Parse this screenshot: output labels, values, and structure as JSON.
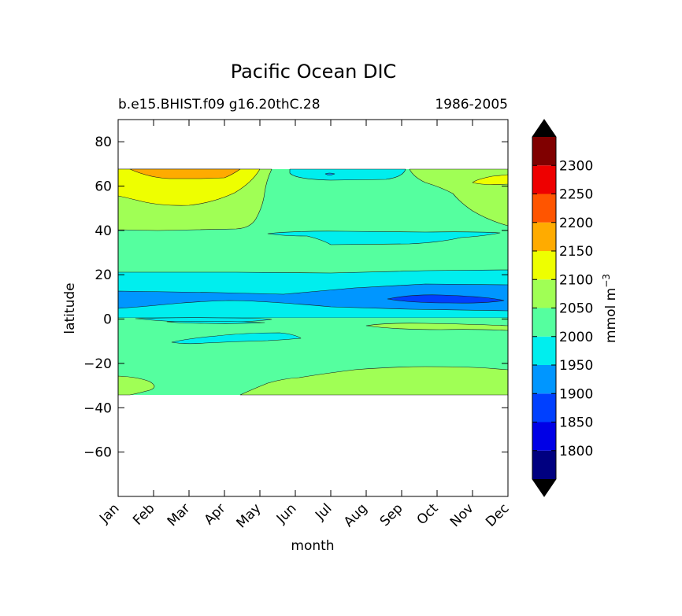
{
  "chart_data": {
    "type": "contourf",
    "title": "Pacific Ocean DIC",
    "subtitle_left": "b.e15.BHIST.f09 g16.20thC.28",
    "subtitle_right": "1986-2005",
    "xlabel": "month",
    "ylabel": "latitude",
    "x_categories": [
      "Jan",
      "Feb",
      "Mar",
      "Apr",
      "May",
      "Jun",
      "Jul",
      "Aug",
      "Sep",
      "Oct",
      "Nov",
      "Dec"
    ],
    "y_ticks": [
      80,
      60,
      40,
      20,
      0,
      -20,
      -40,
      -60
    ],
    "y_tick_labels": [
      "80",
      "60",
      "40",
      "20",
      "0",
      "−20",
      "−40",
      "−60"
    ],
    "ylim": [
      -80,
      90
    ],
    "data_lat_range": [
      -34,
      67
    ],
    "colorbar": {
      "label": "mmol m",
      "label_sup": "−3",
      "tick_labels": [
        "1800",
        "1850",
        "1900",
        "1950",
        "2000",
        "2050",
        "2100",
        "2150",
        "2200",
        "2250",
        "2300"
      ],
      "levels": [
        1750,
        1800,
        1850,
        1900,
        1950,
        2000,
        2050,
        2100,
        2150,
        2200,
        2250,
        2300,
        2350
      ],
      "colors": [
        "#000080",
        "#0000e6",
        "#0040ff",
        "#0096ff",
        "#00eeee",
        "#55ff9f",
        "#a0ff55",
        "#eeff00",
        "#ffab00",
        "#ff5500",
        "#ee0000",
        "#800000"
      ],
      "extend": "both",
      "under_color": "#000000",
      "over_color": "#000000"
    },
    "regions": [
      {
        "level": "2050-2100",
        "color": "#a0ff55",
        "desc": "background band north of 20N and south of -22S"
      },
      {
        "level": "2000-2050",
        "color": "#55ff9f",
        "desc": "main subtropical band"
      },
      {
        "level": "1950-2000",
        "color": "#00eeee",
        "desc": "tropical band near 10-20N and Southern patches"
      },
      {
        "level": "1900-1950",
        "color": "#0096ff",
        "desc": "equatorial band 2-12N"
      },
      {
        "level": "1850-1900",
        "color": "#0040ff",
        "desc": "Sep-Nov minimum near 8N"
      },
      {
        "level": "2100-2150",
        "color": "#eeff00",
        "desc": "Jan-May north of 50N"
      },
      {
        "level": "2150-2200",
        "color": "#ffab00",
        "desc": "Feb-Apr north of 63N"
      }
    ]
  }
}
